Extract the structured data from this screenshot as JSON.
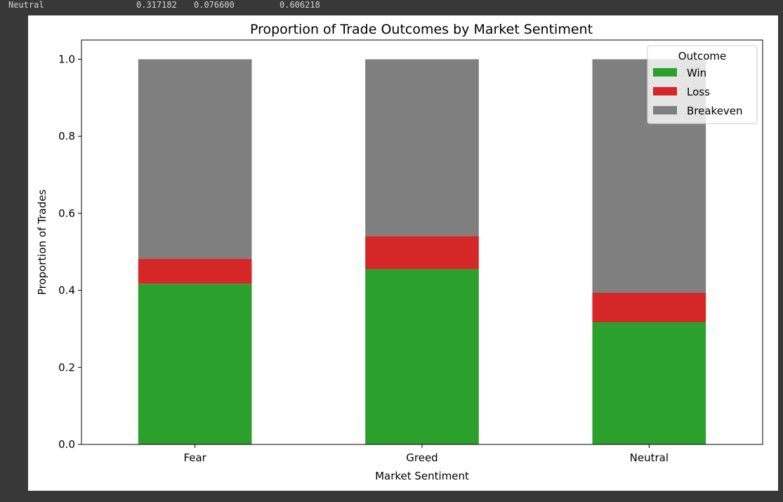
{
  "console": {
    "row_label": "Neutral",
    "values": [
      "0.317182",
      "0.076600",
      "0.606218"
    ]
  },
  "chart_data": {
    "type": "bar",
    "stacked": true,
    "title": "Proportion of Trade Outcomes by Market Sentiment",
    "xlabel": "Market Sentiment",
    "ylabel": "Proportion of Trades",
    "ylim": [
      0,
      1.05
    ],
    "yticks": [
      "0.0",
      "0.2",
      "0.4",
      "0.6",
      "0.8",
      "1.0"
    ],
    "categories": [
      "Fear",
      "Greed",
      "Neutral"
    ],
    "series": [
      {
        "name": "Win",
        "color": "#2ca02c",
        "values": [
          0.417,
          0.455,
          0.317182
        ]
      },
      {
        "name": "Loss",
        "color": "#d62728",
        "values": [
          0.065,
          0.086,
          0.0766
        ]
      },
      {
        "name": "Breakeven",
        "color": "#7f7f7f",
        "values": [
          0.518,
          0.459,
          0.606218
        ]
      }
    ],
    "legend": {
      "title": "Outcome",
      "position": "top-right"
    },
    "grid": false
  }
}
